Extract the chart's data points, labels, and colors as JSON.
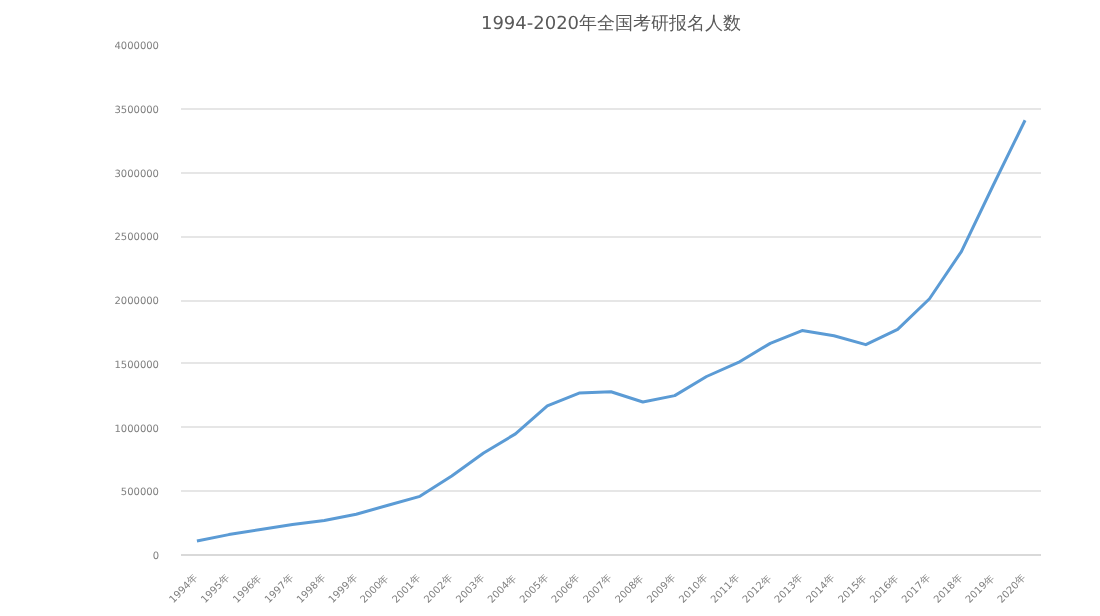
{
  "chart_data": {
    "type": "line",
    "title": "1994-2020年全国考研报名人数",
    "categories": [
      "1994年",
      "1995年",
      "1996年",
      "1997年",
      "1998年",
      "1999年",
      "2000年",
      "2001年",
      "2002年",
      "2003年",
      "2004年",
      "2005年",
      "2006年",
      "2007年",
      "2008年",
      "2009年",
      "2010年",
      "2011年",
      "2012年",
      "2013年",
      "2014年",
      "2015年",
      "2016年",
      "2017年",
      "2018年",
      "2019年",
      "2020年"
    ],
    "series": [
      {
        "color": "#5b9bd5",
        "values": [
          110000,
          160000,
          200000,
          240000,
          270000,
          320000,
          390000,
          460000,
          620000,
          800000,
          950000,
          1170000,
          1270000,
          1280000,
          1200000,
          1250000,
          1400000,
          1510000,
          1660000,
          1760000,
          1720000,
          1650000,
          1770000,
          2010000,
          2380000,
          2900000,
          3410000
        ]
      }
    ],
    "ylim": [
      0,
      4000000
    ],
    "yticks": [
      0,
      500000,
      1000000,
      1500000,
      2000000,
      2500000,
      3000000,
      3500000,
      4000000
    ],
    "grid": "y",
    "marker": "none",
    "line_style": "solid"
  }
}
